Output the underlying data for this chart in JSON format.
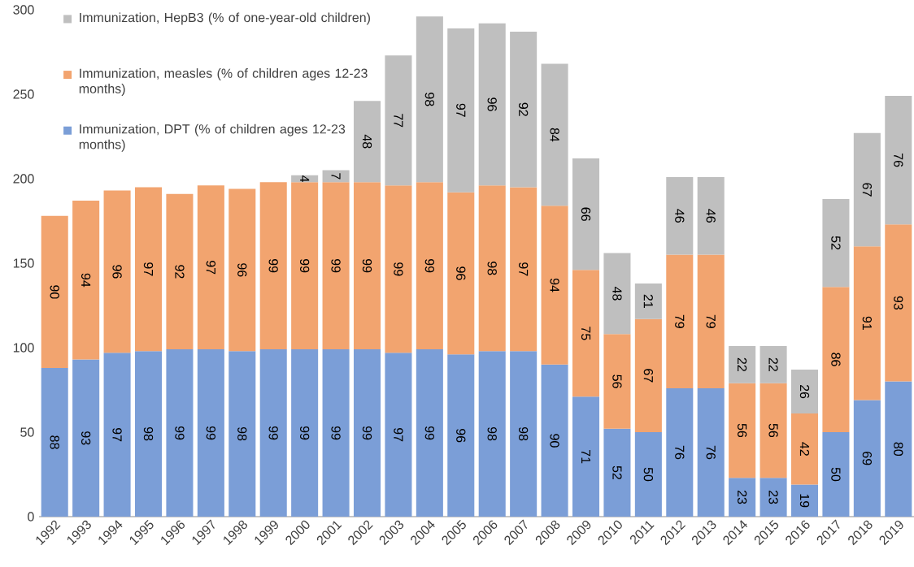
{
  "chart_data": {
    "type": "bar",
    "stacked": true,
    "data_labels": true,
    "legend": "top left",
    "categories": [
      "1992",
      "1993",
      "1994",
      "1995",
      "1996",
      "1997",
      "1998",
      "1999",
      "2000",
      "2001",
      "2002",
      "2003",
      "2004",
      "2005",
      "2006",
      "2007",
      "2008",
      "2009",
      "2010",
      "2011",
      "2012",
      "2013",
      "2014",
      "2015",
      "2016",
      "2017",
      "2018",
      "2019"
    ],
    "series": [
      {
        "name": "Immunization, DPT (% of children ages 12-23 months)",
        "color": "#7b9ed7",
        "values": [
          88,
          93,
          97,
          98,
          99,
          99,
          98,
          99,
          99,
          99,
          99,
          97,
          99,
          96,
          98,
          98,
          90,
          71,
          52,
          50,
          76,
          76,
          23,
          23,
          19,
          50,
          69,
          80
        ]
      },
      {
        "name": "Immunization, measles (% of children ages 12-23 months)",
        "color": "#f2a46f",
        "values": [
          90,
          94,
          96,
          97,
          92,
          97,
          96,
          99,
          99,
          99,
          99,
          99,
          99,
          96,
          98,
          97,
          94,
          75,
          56,
          67,
          79,
          79,
          56,
          56,
          42,
          86,
          91,
          93
        ]
      },
      {
        "name": "Immunization, HepB3 (% of one-year-old children)",
        "color": "#bfbfbf",
        "values": [
          null,
          null,
          null,
          null,
          null,
          null,
          null,
          null,
          4,
          7,
          48,
          77,
          98,
          97,
          96,
          92,
          84,
          66,
          48,
          21,
          46,
          46,
          22,
          22,
          26,
          52,
          67,
          76
        ]
      }
    ],
    "ylim": [
      0,
      300
    ],
    "yticks": [
      0,
      50,
      100,
      150,
      200,
      250,
      300
    ]
  }
}
